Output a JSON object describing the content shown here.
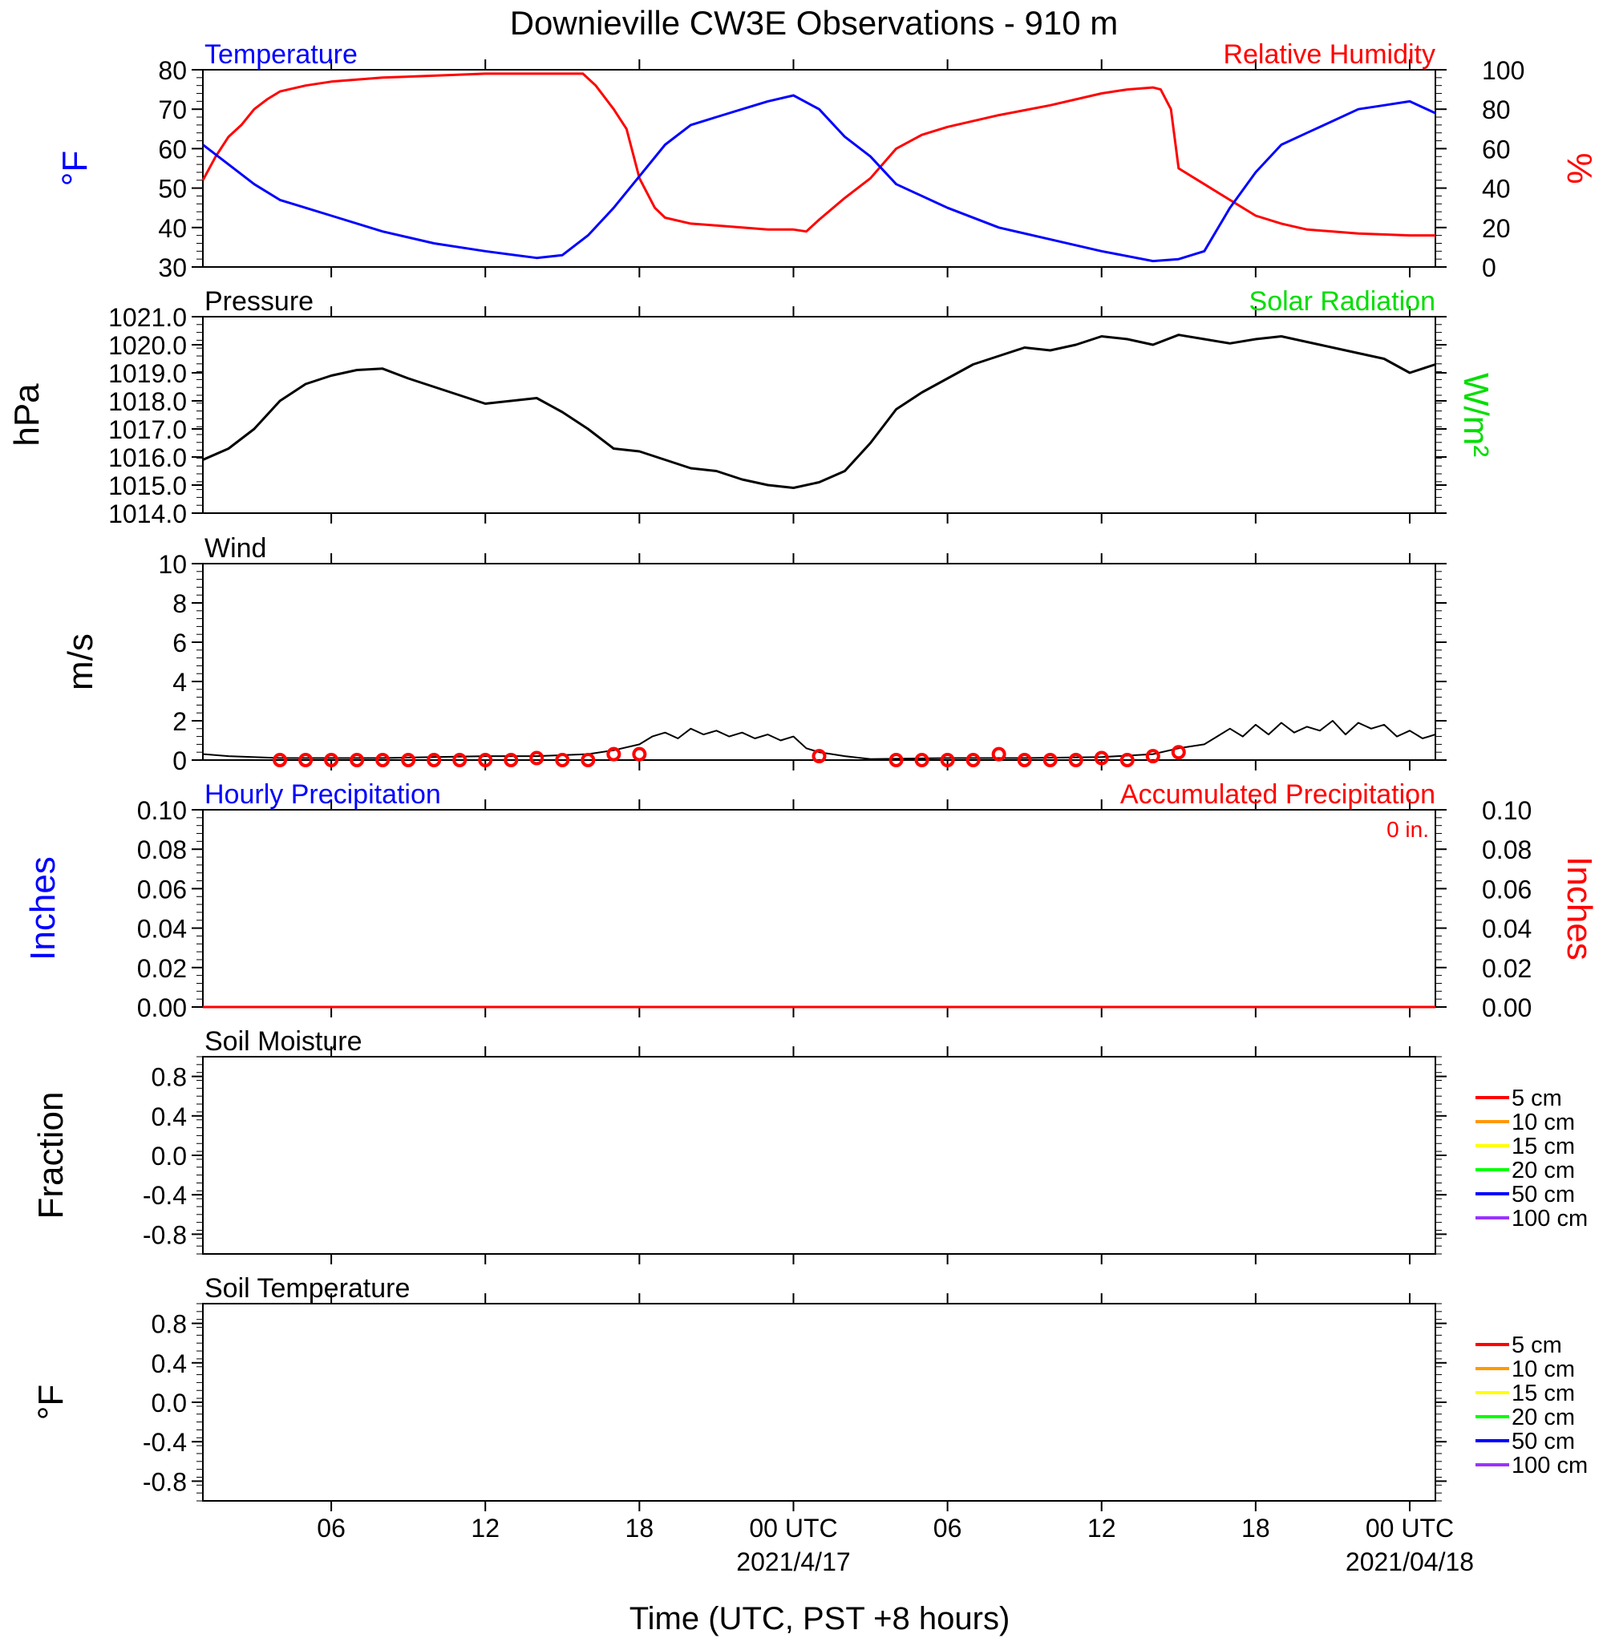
{
  "title": "Downieville CW3E Observations - 910 m",
  "xaxis": {
    "label": "Time (UTC, PST +8 hours)",
    "ticks": [
      {
        "h": 6,
        "label": "06"
      },
      {
        "h": 12,
        "label": "12"
      },
      {
        "h": 18,
        "label": "18"
      },
      {
        "h": 24,
        "label": "00 UTC",
        "sub": "2021/4/17"
      },
      {
        "h": 30,
        "label": "06"
      },
      {
        "h": 36,
        "label": "12"
      },
      {
        "h": 42,
        "label": "18"
      },
      {
        "h": 48,
        "label": "00 UTC",
        "sub": "2021/04/18"
      }
    ]
  },
  "colors": {
    "temperature": "#0000ff",
    "humidity": "#ff0000",
    "solar": "#00dd00",
    "pressure": "#000000",
    "wind": "#000000",
    "gust": "#ff0000"
  },
  "panels": {
    "temp": {
      "left_title": "Temperature",
      "right_title": "Relative Humidity",
      "left_unit": "°F",
      "right_unit": "%",
      "left_ticks": [
        "30",
        "40",
        "50",
        "60",
        "70",
        "80"
      ],
      "right_ticks": [
        "0",
        "20",
        "40",
        "60",
        "80",
        "100"
      ]
    },
    "pressure": {
      "left_title": "Pressure",
      "right_title": "Solar Radiation",
      "left_unit": "hPa",
      "right_unit": "W/m²",
      "left_ticks": [
        "1014.0",
        "1015.0",
        "1016.0",
        "1017.0",
        "1018.0",
        "1019.0",
        "1020.0",
        "1021.0"
      ]
    },
    "wind": {
      "left_title": "Wind",
      "left_unit": "m/s",
      "left_ticks": [
        "0",
        "2",
        "4",
        "6",
        "8",
        "10"
      ]
    },
    "precip": {
      "left_title": "Hourly Precipitation",
      "right_title": "Accumulated Precipitation",
      "total": "0 in.",
      "left_unit": "Inches",
      "right_unit": "Inches",
      "left_ticks": [
        "0.00",
        "0.02",
        "0.04",
        "0.06",
        "0.08",
        "0.10"
      ],
      "right_ticks": [
        "0.00",
        "0.02",
        "0.04",
        "0.06",
        "0.08",
        "0.10"
      ]
    },
    "soil_moisture": {
      "left_title": "Soil Moisture",
      "left_unit": "Fraction",
      "left_ticks": [
        "-0.8",
        "-0.4",
        "0.0",
        "0.4",
        "0.8"
      ],
      "legend": [
        {
          "label": "5 cm",
          "color": "#ff0000"
        },
        {
          "label": "10 cm",
          "color": "#ff9900"
        },
        {
          "label": "15 cm",
          "color": "#ffff00"
        },
        {
          "label": "20 cm",
          "color": "#00ff00"
        },
        {
          "label": "50 cm",
          "color": "#0000ff"
        },
        {
          "label": "100 cm",
          "color": "#9933ff"
        }
      ]
    },
    "soil_temp": {
      "left_title": "Soil Temperature",
      "left_unit": "°F",
      "left_ticks": [
        "-0.8",
        "-0.4",
        "0.0",
        "0.4",
        "0.8"
      ],
      "legend": [
        {
          "label": "5 cm",
          "color": "#ff0000"
        },
        {
          "label": "10 cm",
          "color": "#ff9900"
        },
        {
          "label": "15 cm",
          "color": "#ffff00"
        },
        {
          "label": "20 cm",
          "color": "#00ff00"
        },
        {
          "label": "50 cm",
          "color": "#0000ff"
        },
        {
          "label": "100 cm",
          "color": "#9933ff"
        }
      ]
    }
  },
  "chart_data": [
    {
      "type": "line",
      "panel": "temp",
      "x_range_hours": [
        1,
        49
      ],
      "series": [
        {
          "name": "Temperature",
          "axis": "left",
          "unit": "°F",
          "ylim": [
            30,
            80
          ],
          "x": [
            1,
            2,
            3,
            4,
            5,
            6,
            8,
            10,
            12,
            14,
            15,
            16,
            17,
            18,
            19,
            20,
            21,
            22,
            23,
            24,
            25,
            26,
            27,
            28,
            30,
            32,
            34,
            36,
            38,
            39,
            40,
            41,
            42,
            43,
            44,
            45,
            46,
            47,
            48,
            49
          ],
          "y": [
            61,
            56,
            51,
            47,
            45,
            43,
            39,
            36,
            34,
            32.3,
            33,
            38,
            45,
            53,
            61,
            66,
            68,
            70,
            72,
            73.5,
            70,
            63,
            58,
            51,
            45,
            40,
            37,
            34,
            31.5,
            32,
            34,
            45,
            54,
            61,
            64,
            67,
            70,
            71,
            72,
            69
          ]
        },
        {
          "name": "Relative Humidity",
          "axis": "right",
          "unit": "%",
          "ylim": [
            0,
            100
          ],
          "x": [
            1,
            1.5,
            2,
            2.5,
            3,
            3.5,
            4,
            5,
            6,
            8,
            10,
            12,
            14,
            15,
            15.8,
            16.3,
            17,
            17.5,
            18,
            18.6,
            19,
            20,
            21,
            22,
            23,
            24,
            24.5,
            25,
            26,
            27,
            28,
            29,
            30,
            32,
            34,
            36,
            37,
            38,
            38.3,
            38.7,
            39,
            40,
            41,
            42,
            43,
            44,
            46,
            48,
            49
          ],
          "y": [
            44,
            56,
            66,
            72,
            80,
            85,
            89,
            92,
            94,
            96,
            97,
            98,
            98,
            98,
            98,
            92,
            80,
            70,
            45,
            30,
            25,
            22,
            21,
            20,
            19,
            19,
            18,
            24,
            35,
            45,
            60,
            67,
            71,
            77,
            82,
            88,
            90,
            91,
            90,
            80,
            50,
            42,
            34,
            26,
            22,
            19,
            17,
            16,
            16
          ]
        }
      ]
    },
    {
      "type": "line",
      "panel": "pressure",
      "ylabel": "hPa",
      "ylim": [
        1014,
        1021
      ],
      "series": [
        {
          "name": "Pressure",
          "x": [
            1,
            2,
            3,
            4,
            5,
            6,
            7,
            8,
            9,
            10,
            11,
            12,
            13,
            14,
            15,
            16,
            17,
            18,
            19,
            20,
            21,
            22,
            23,
            24,
            25,
            26,
            27,
            28,
            29,
            30,
            31,
            32,
            33,
            34,
            35,
            36,
            37,
            38,
            39,
            40,
            41,
            42,
            43,
            44,
            45,
            46,
            47,
            48,
            49
          ],
          "y": [
            1015.9,
            1016.3,
            1017.0,
            1018.0,
            1018.6,
            1018.9,
            1019.1,
            1019.15,
            1018.8,
            1018.5,
            1018.2,
            1017.9,
            1018.0,
            1018.1,
            1017.6,
            1017.0,
            1016.3,
            1016.2,
            1015.9,
            1015.6,
            1015.5,
            1015.2,
            1015.0,
            1014.9,
            1015.1,
            1015.5,
            1016.5,
            1017.7,
            1018.3,
            1018.8,
            1019.3,
            1019.6,
            1019.9,
            1019.8,
            1020.0,
            1020.3,
            1020.2,
            1020.0,
            1020.35,
            1020.2,
            1020.05,
            1020.2,
            1020.3,
            1020.1,
            1019.9,
            1019.7,
            1019.5,
            1019.0,
            1019.3
          ]
        }
      ]
    },
    {
      "type": "line",
      "panel": "wind",
      "ylabel": "m/s",
      "ylim": [
        0,
        10
      ],
      "series": [
        {
          "name": "Wind",
          "x": [
            1,
            2,
            4,
            6,
            8,
            10,
            12,
            14,
            15,
            16,
            17,
            18,
            18.5,
            19,
            19.5,
            20,
            20.5,
            21,
            21.5,
            22,
            22.5,
            23,
            23.5,
            24,
            24.5,
            25,
            25.5,
            26,
            27,
            30,
            33,
            36,
            38,
            39,
            40,
            40.5,
            41,
            41.5,
            42,
            42.5,
            43,
            43.5,
            44,
            44.5,
            45,
            45.5,
            46,
            46.5,
            47,
            47.5,
            48,
            48.5,
            49
          ],
          "y": [
            0.3,
            0.2,
            0.1,
            0.1,
            0.1,
            0.15,
            0.2,
            0.2,
            0.25,
            0.3,
            0.5,
            0.8,
            1.2,
            1.4,
            1.1,
            1.6,
            1.3,
            1.5,
            1.2,
            1.4,
            1.1,
            1.3,
            1.0,
            1.2,
            0.6,
            0.4,
            0.3,
            0.2,
            0.05,
            0.1,
            0.1,
            0.15,
            0.3,
            0.6,
            0.8,
            1.2,
            1.6,
            1.2,
            1.8,
            1.3,
            1.9,
            1.4,
            1.7,
            1.5,
            2.0,
            1.3,
            1.9,
            1.6,
            1.8,
            1.2,
            1.5,
            1.1,
            1.3
          ]
        },
        {
          "name": "Gust markers",
          "marker": "circle",
          "x": [
            4,
            5,
            6,
            7,
            8,
            9,
            10,
            11,
            12,
            13,
            14,
            15,
            16,
            17,
            18,
            25,
            28,
            29,
            30,
            31,
            32,
            33,
            34,
            35,
            36,
            37,
            38,
            39
          ],
          "y": [
            0,
            0,
            0,
            0,
            0,
            0,
            0,
            0,
            0,
            0,
            0.1,
            0,
            0,
            0.3,
            0.3,
            0.2,
            0,
            0,
            0,
            0,
            0.3,
            0,
            0,
            0,
            0.1,
            0,
            0.2,
            0.4
          ]
        }
      ]
    },
    {
      "type": "line",
      "panel": "precip",
      "ylabel": "Inches",
      "ylim": [
        0,
        0.1
      ],
      "series": [
        {
          "name": "Hourly Precipitation",
          "x": [
            1,
            49
          ],
          "y": [
            0,
            0
          ]
        },
        {
          "name": "Accumulated Precipitation",
          "x": [
            1,
            49
          ],
          "y": [
            0,
            0
          ]
        }
      ]
    },
    {
      "type": "line",
      "panel": "soil_moisture",
      "ylabel": "Fraction",
      "ylim": [
        -1,
        1
      ],
      "series": []
    },
    {
      "type": "line",
      "panel": "soil_temp",
      "ylabel": "°F",
      "ylim": [
        -1,
        1
      ],
      "series": []
    }
  ]
}
